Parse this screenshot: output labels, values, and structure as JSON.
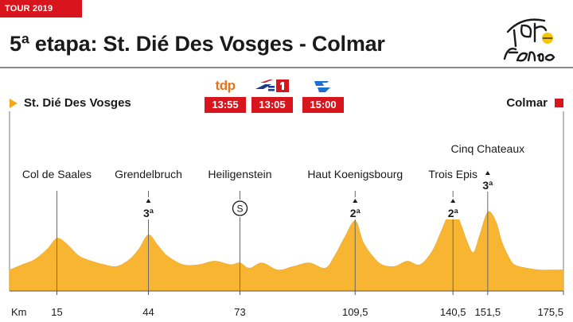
{
  "header": {
    "tag": "TOUR 2019",
    "title": "5ª etapa: St. Dié Des Vosges - Colmar"
  },
  "endpoints": {
    "start": "St. Dié Des Vosges",
    "finish": "Colmar"
  },
  "broadcasts": [
    {
      "channel": "tdp",
      "time": "13:55",
      "color": "#e8731e"
    },
    {
      "channel": "la-1-icon",
      "time": "13:05",
      "color": "#d8151c"
    },
    {
      "channel": "teledeporte-icon",
      "time": "15:00",
      "color": "#1f6fd1"
    }
  ],
  "colors": {
    "accent": "#d8151c",
    "profile_fill": "#f7b531",
    "start_marker": "#f2a81d"
  },
  "chart_data": {
    "type": "area",
    "title": "5ª etapa: St. Dié Des Vosges - Colmar",
    "xlabel": "Km",
    "ylabel": "",
    "xlim": [
      0,
      175.5
    ],
    "ylim": [
      0,
      100
    ],
    "grid": false,
    "ticks": [
      {
        "value": 15,
        "label": "15"
      },
      {
        "value": 44,
        "label": "44"
      },
      {
        "value": 73,
        "label": "73"
      },
      {
        "value": 109.5,
        "label": "109,5"
      },
      {
        "value": 140.5,
        "label": "140,5"
      },
      {
        "value": 151.5,
        "label": "151,5"
      },
      {
        "value": 175.5,
        "label": "175,5"
      }
    ],
    "profile": {
      "x": [
        0,
        4,
        8,
        12,
        15,
        18,
        22,
        26,
        30,
        34,
        38,
        41,
        44,
        47,
        50,
        55,
        60,
        65,
        70,
        73,
        76,
        80,
        85,
        90,
        95,
        100,
        103,
        106,
        109.5,
        112,
        115,
        118,
        122,
        126,
        130,
        134,
        137,
        140.5,
        143,
        145,
        147,
        149,
        151.5,
        154,
        156,
        158,
        160,
        164,
        168,
        172,
        175.5
      ],
      "y": [
        12,
        15,
        18,
        24,
        30,
        27,
        20,
        17,
        15,
        14,
        18,
        24,
        32,
        26,
        20,
        15,
        15,
        17,
        15,
        16,
        13,
        16,
        12,
        14,
        16,
        13,
        20,
        30,
        40,
        28,
        20,
        15,
        14,
        17,
        15,
        23,
        35,
        48,
        38,
        28,
        22,
        32,
        45,
        40,
        28,
        20,
        15,
        13,
        12,
        12,
        12
      ]
    },
    "points": [
      {
        "km": 15,
        "name": "Col de Saales",
        "category": ""
      },
      {
        "km": 44,
        "name": "Grendelbruch",
        "category": "3ª"
      },
      {
        "km": 73,
        "name": "Heiligenstein",
        "category": "S"
      },
      {
        "km": 109.5,
        "name": "Haut Koenigsbourg",
        "category": "2ª"
      },
      {
        "km": 140.5,
        "name": "Trois Epis",
        "category": "2ª"
      },
      {
        "km": 151.5,
        "name": "Cinq Chateaux",
        "category": "3ª"
      }
    ]
  }
}
